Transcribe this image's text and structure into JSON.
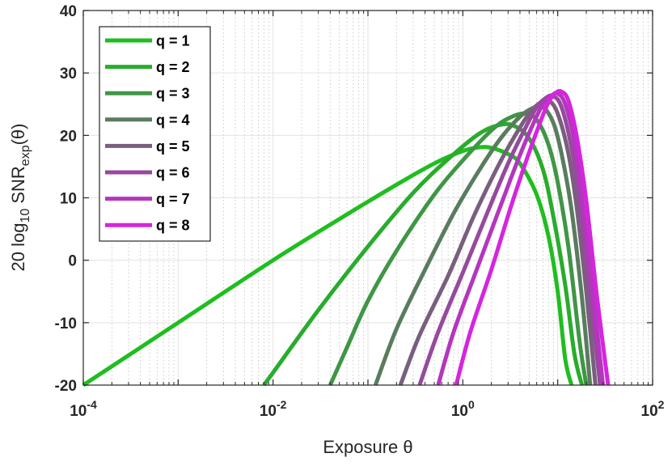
{
  "chart_data": {
    "type": "line",
    "title": "",
    "xlabel": "Exposure θ",
    "ylabel": "20 log10 SNRexp(θ)",
    "ylabel_parts": {
      "prefix": "20 log",
      "sub1": "10",
      "mid": " SNR",
      "sub2": "exp",
      "suffix": "(θ)"
    },
    "xscale": "log",
    "xlim": [
      0.0001,
      100
    ],
    "ylim": [
      -20,
      40
    ],
    "grid": true,
    "minor_grid": true,
    "legend_position": "top-left",
    "x_ticks": [
      {
        "value": 0.0001,
        "base": "10",
        "exp": "-4"
      },
      {
        "value": 0.01,
        "base": "10",
        "exp": "-2"
      },
      {
        "value": 1,
        "base": "10",
        "exp": "0"
      },
      {
        "value": 100,
        "base": "10",
        "exp": "2"
      }
    ],
    "y_ticks": [
      {
        "value": -20,
        "label": "-20"
      },
      {
        "value": -10,
        "label": "-10"
      },
      {
        "value": 0,
        "label": "0"
      },
      {
        "value": 10,
        "label": "10"
      },
      {
        "value": 20,
        "label": "20"
      },
      {
        "value": 30,
        "label": "30"
      },
      {
        "value": 40,
        "label": "40"
      }
    ],
    "series": [
      {
        "name": "q = 1",
        "color": "#1fbe1f",
        "x": [
          0.0001,
          0.001,
          0.01,
          0.05,
          0.2,
          0.5,
          1,
          1.5,
          2,
          3,
          4,
          6,
          8,
          10,
          12,
          14
        ],
        "y": [
          -20,
          -10,
          0,
          6.6,
          12.1,
          15.5,
          17.5,
          18.1,
          18,
          17,
          15.5,
          10.5,
          3.8,
          -5,
          -15.8,
          -20
        ]
      },
      {
        "name": "q = 2",
        "color": "#28ac2c",
        "x": [
          0.008,
          0.01,
          0.03,
          0.1,
          0.3,
          0.7,
          1.5,
          2.5,
          3.5,
          5,
          7,
          9,
          12,
          15,
          18
        ],
        "y": [
          -20,
          -18,
          -8,
          2.2,
          10.8,
          16.2,
          20.3,
          21.7,
          21.5,
          19.5,
          14.5,
          7,
          -4,
          -15,
          -20
        ]
      },
      {
        "name": "q = 3",
        "color": "#3f9645",
        "x": [
          0.04,
          0.06,
          0.1,
          0.2,
          0.5,
          1,
          2,
          3,
          4.5,
          6,
          8,
          10,
          13,
          17,
          20
        ],
        "y": [
          -20,
          -14,
          -6.5,
          1.5,
          10.5,
          16,
          20.8,
          22.7,
          23.5,
          22.5,
          18.5,
          12.5,
          2,
          -13,
          -20
        ]
      },
      {
        "name": "q = 4",
        "color": "#5a7c5e",
        "x": [
          0.12,
          0.2,
          0.4,
          0.8,
          1.5,
          2.5,
          4,
          5.5,
          7,
          9,
          11,
          14,
          18,
          22
        ],
        "y": [
          -20,
          -11,
          -1.5,
          7.5,
          14.5,
          19.5,
          23,
          24.4,
          24.5,
          22,
          17,
          8,
          -6,
          -20
        ]
      },
      {
        "name": "q = 5",
        "color": "#795f7e",
        "x": [
          0.22,
          0.35,
          0.7,
          1.3,
          2.3,
          3.5,
          5,
          6.5,
          8,
          10,
          13,
          16,
          20,
          25
        ],
        "y": [
          -20,
          -12,
          -2.5,
          7,
          14.8,
          19.8,
          23.5,
          25.2,
          25.6,
          23.5,
          17,
          8,
          -5,
          -20
        ]
      },
      {
        "name": "q = 6",
        "color": "#964a9d",
        "x": [
          0.35,
          0.55,
          1,
          1.8,
          3,
          4.5,
          6,
          7.5,
          9,
          11,
          14,
          17,
          21,
          28
        ],
        "y": [
          -20,
          -11.5,
          -2,
          7.5,
          15.5,
          21,
          24.5,
          26,
          26.3,
          24.5,
          18,
          9.5,
          -3,
          -20
        ]
      },
      {
        "name": "q = 7",
        "color": "#b535bf",
        "x": [
          0.55,
          0.8,
          1.4,
          2.4,
          3.8,
          5.5,
          7,
          8.5,
          10,
          12,
          15,
          18,
          23,
          30
        ],
        "y": [
          -20,
          -11.5,
          -1.5,
          8,
          16,
          21.8,
          25,
          26.3,
          26.7,
          25,
          19,
          10,
          -4,
          -20
        ]
      },
      {
        "name": "q = 8",
        "color": "#d525de",
        "x": [
          0.85,
          1.2,
          2,
          3.2,
          4.8,
          6.5,
          8,
          9.5,
          11,
          13,
          16,
          20,
          26,
          34
        ],
        "y": [
          -20,
          -11.5,
          -1.5,
          8.5,
          16.5,
          22,
          25.3,
          26.8,
          27,
          25.5,
          19.5,
          9.5,
          -6,
          -20
        ]
      }
    ]
  }
}
